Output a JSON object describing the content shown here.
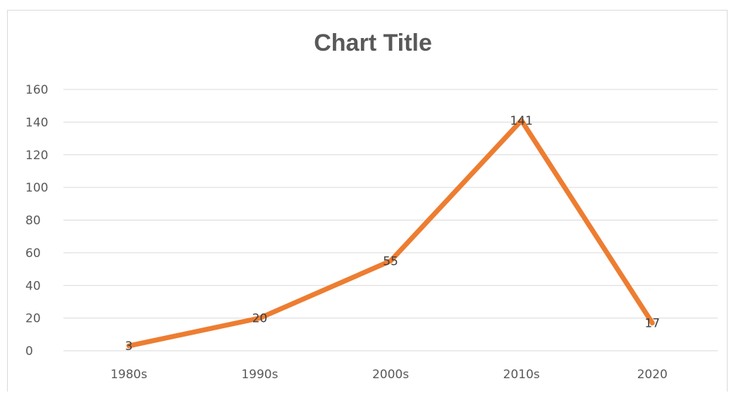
{
  "chart_data": {
    "type": "line",
    "title": "Chart Title",
    "categories": [
      "1980s",
      "1990s",
      "2000s",
      "2010s",
      "2020"
    ],
    "series": [
      {
        "values": [
          3,
          20,
          55,
          141,
          17
        ]
      }
    ],
    "ylim": [
      0,
      160
    ],
    "yticks": [
      0,
      20,
      40,
      60,
      80,
      100,
      120,
      140,
      160
    ],
    "grid": true,
    "data_labels": true,
    "legend": "none",
    "line_color": "#ED7D31",
    "grid_color": "#D9D9D9"
  }
}
